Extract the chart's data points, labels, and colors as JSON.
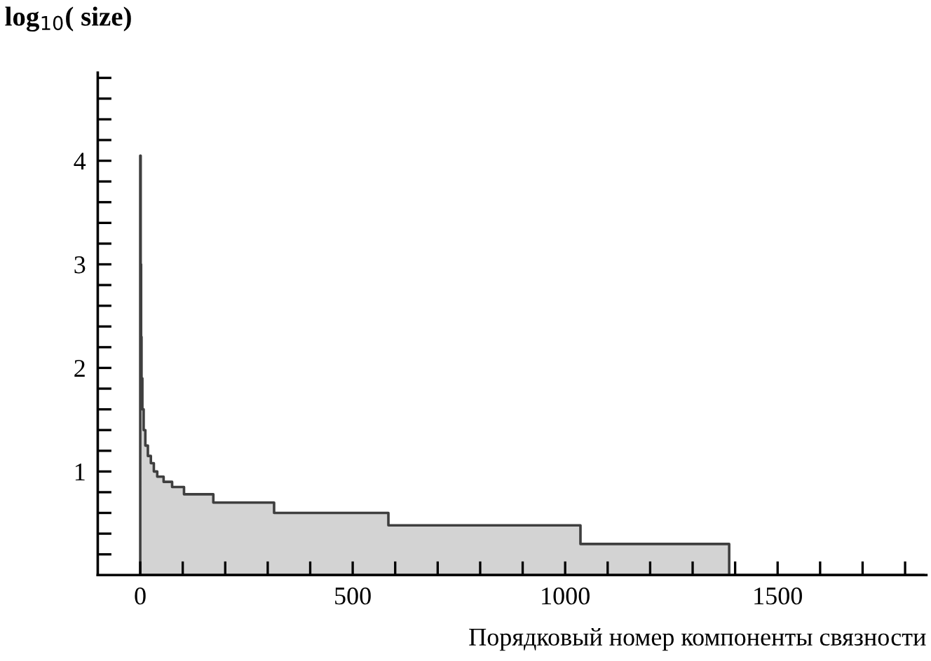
{
  "chart_data": {
    "type": "area",
    "xlabel": "Порядковый номер компоненты связности",
    "ylabel": "log$_{10}$( size)",
    "series": [
      {
        "color": "#d3d3d3",
        "x": [
          0,
          1,
          2,
          3,
          5,
          8,
          12,
          18,
          25,
          32,
          40,
          55,
          75,
          103,
          172,
          315,
          584,
          1036,
          1386,
          1845
        ],
        "values": [
          4.05,
          3.0,
          2.3,
          1.9,
          1.6,
          1.4,
          1.25,
          1.15,
          1.08,
          1.0,
          0.95,
          0.9,
          0.85,
          0.78,
          0.7,
          0.6,
          0.48,
          0.3,
          0,
          0
        ]
      }
    ],
    "xlim": [
      -100,
      1850
    ],
    "ylim": [
      0,
      4.85
    ],
    "xticks": [
      0,
      {
        "value": 100,
        "label": null
      },
      {
        "value": 200,
        "label": null
      },
      {
        "value": 300,
        "label": null
      },
      {
        "value": 400,
        "label": null
      },
      500,
      {
        "value": 600,
        "label": null
      },
      {
        "value": 700,
        "label": null
      },
      {
        "value": 800,
        "label": null
      },
      {
        "value": 900,
        "label": null
      },
      1000,
      {
        "value": 1100,
        "label": null
      },
      {
        "value": 1200,
        "label": null
      },
      {
        "value": 1300,
        "label": null
      },
      {
        "value": 1400,
        "label": null
      },
      1500,
      {
        "value": 1600,
        "label": null
      },
      {
        "value": 1700,
        "label": null
      },
      {
        "value": 1800,
        "label": null
      }
    ],
    "yticks": [
      {
        "value": 0.2,
        "label": null
      },
      {
        "value": 0.4,
        "label": null
      },
      {
        "value": 0.6,
        "label": null
      },
      {
        "value": 0.8,
        "label": null
      },
      1,
      {
        "value": 1.2,
        "label": null
      },
      {
        "value": 1.4,
        "label": null
      },
      {
        "value": 1.6,
        "label": null
      },
      {
        "value": 1.8,
        "label": null
      },
      2,
      {
        "value": 2.2,
        "label": null
      },
      {
        "value": 2.4,
        "label": null
      },
      {
        "value": 2.6,
        "label": null
      },
      {
        "value": 2.8,
        "label": null
      },
      3,
      {
        "value": 3.2,
        "label": null
      },
      {
        "value": 3.4,
        "label": null
      },
      {
        "value": 3.6,
        "label": null
      },
      {
        "value": 3.8,
        "label": null
      },
      4,
      {
        "value": 4.2,
        "label": null
      },
      {
        "value": 4.4,
        "label": null
      },
      {
        "value": 4.6,
        "label": null
      },
      {
        "value": 4.8,
        "label": null
      }
    ],
    "grid": false,
    "legend": false
  }
}
